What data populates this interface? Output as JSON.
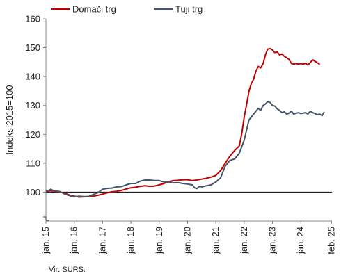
{
  "chart_data": {
    "type": "line",
    "ylabel": "Indeks 2015=100",
    "xlabel": "",
    "ylim": [
      90,
      160
    ],
    "y_ticks": [
      100,
      110,
      120,
      130,
      140,
      150,
      160
    ],
    "y_axis_break": true,
    "reference_line": 100,
    "grid": false,
    "legend_position": "top-left",
    "x_ticks": [
      {
        "label": "jan. 15",
        "x": 2015.0
      },
      {
        "label": "jan. 16",
        "x": 2016.0
      },
      {
        "label": "jan. 17",
        "x": 2017.0
      },
      {
        "label": "jan. 18",
        "x": 2018.0
      },
      {
        "label": "jan. 19",
        "x": 2019.0
      },
      {
        "label": "jan. 20",
        "x": 2020.0
      },
      {
        "label": "jan. 21",
        "x": 2021.0
      },
      {
        "label": "jan. 22",
        "x": 2022.0
      },
      {
        "label": "jan. 23",
        "x": 2023.0
      },
      {
        "label": "jan. 24",
        "x": 2024.0
      },
      {
        "label": "feb. 25",
        "x": 2025.083
      }
    ],
    "series": [
      {
        "name": "Domači trg",
        "color": "#c00000",
        "points": [
          [
            2015.0,
            100.2
          ],
          [
            2015.17,
            100.5
          ],
          [
            2015.33,
            100.3
          ],
          [
            2015.5,
            100.0
          ],
          [
            2015.67,
            99.6
          ],
          [
            2015.83,
            99.0
          ],
          [
            2016.0,
            98.6
          ],
          [
            2016.17,
            98.3
          ],
          [
            2016.33,
            98.4
          ],
          [
            2016.5,
            98.5
          ],
          [
            2016.67,
            98.6
          ],
          [
            2016.83,
            98.9
          ],
          [
            2017.0,
            99.3
          ],
          [
            2017.17,
            99.8
          ],
          [
            2017.33,
            100.1
          ],
          [
            2017.5,
            100.3
          ],
          [
            2017.67,
            100.6
          ],
          [
            2017.83,
            101.1
          ],
          [
            2018.0,
            101.5
          ],
          [
            2018.17,
            101.7
          ],
          [
            2018.33,
            102.0
          ],
          [
            2018.5,
            102.2
          ],
          [
            2018.67,
            102.0
          ],
          [
            2018.83,
            102.1
          ],
          [
            2019.0,
            102.5
          ],
          [
            2019.17,
            103.0
          ],
          [
            2019.33,
            103.6
          ],
          [
            2019.5,
            104.0
          ],
          [
            2019.67,
            104.1
          ],
          [
            2019.83,
            104.3
          ],
          [
            2020.0,
            104.3
          ],
          [
            2020.17,
            104.0
          ],
          [
            2020.33,
            104.2
          ],
          [
            2020.5,
            104.5
          ],
          [
            2020.67,
            104.8
          ],
          [
            2020.83,
            105.2
          ],
          [
            2021.0,
            105.8
          ],
          [
            2021.17,
            107.5
          ],
          [
            2021.33,
            110.0
          ],
          [
            2021.5,
            112.5
          ],
          [
            2021.67,
            114.5
          ],
          [
            2021.83,
            116.0
          ],
          [
            2021.92,
            120.5
          ],
          [
            2022.0,
            126.0
          ],
          [
            2022.08,
            130.0
          ],
          [
            2022.17,
            135.0
          ],
          [
            2022.25,
            137.5
          ],
          [
            2022.33,
            139.0
          ],
          [
            2022.42,
            142.0
          ],
          [
            2022.5,
            143.5
          ],
          [
            2022.58,
            143.0
          ],
          [
            2022.67,
            144.5
          ],
          [
            2022.75,
            147.5
          ],
          [
            2022.83,
            149.5
          ],
          [
            2022.92,
            149.7
          ],
          [
            2023.0,
            149.2
          ],
          [
            2023.08,
            148.3
          ],
          [
            2023.17,
            148.5
          ],
          [
            2023.25,
            147.5
          ],
          [
            2023.33,
            147.8
          ],
          [
            2023.42,
            147.0
          ],
          [
            2023.5,
            146.5
          ],
          [
            2023.58,
            146.0
          ],
          [
            2023.67,
            144.5
          ],
          [
            2023.75,
            144.3
          ],
          [
            2023.83,
            144.5
          ],
          [
            2023.92,
            144.3
          ],
          [
            2024.0,
            144.5
          ],
          [
            2024.08,
            144.3
          ],
          [
            2024.17,
            144.6
          ],
          [
            2024.25,
            144.0
          ],
          [
            2024.33,
            144.8
          ],
          [
            2024.42,
            145.8
          ],
          [
            2024.5,
            145.3
          ],
          [
            2024.58,
            144.8
          ],
          [
            2024.67,
            144.2
          ]
        ]
      },
      {
        "name": "Tuji trg",
        "color": "#44546a",
        "points": [
          [
            2015.0,
            100.3
          ],
          [
            2015.08,
            100.5
          ],
          [
            2015.17,
            101.0
          ],
          [
            2015.25,
            100.6
          ],
          [
            2015.33,
            100.4
          ],
          [
            2015.5,
            100.2
          ],
          [
            2015.67,
            99.3
          ],
          [
            2015.83,
            98.8
          ],
          [
            2016.0,
            98.4
          ],
          [
            2016.17,
            98.6
          ],
          [
            2016.33,
            98.5
          ],
          [
            2016.5,
            98.5
          ],
          [
            2016.67,
            99.2
          ],
          [
            2016.83,
            99.8
          ],
          [
            2017.0,
            101.0
          ],
          [
            2017.17,
            101.3
          ],
          [
            2017.33,
            101.4
          ],
          [
            2017.5,
            101.8
          ],
          [
            2017.67,
            101.9
          ],
          [
            2017.83,
            102.5
          ],
          [
            2018.0,
            103.0
          ],
          [
            2018.17,
            103.0
          ],
          [
            2018.33,
            103.8
          ],
          [
            2018.5,
            104.2
          ],
          [
            2018.67,
            104.2
          ],
          [
            2018.83,
            104.0
          ],
          [
            2019.0,
            104.0
          ],
          [
            2019.17,
            103.5
          ],
          [
            2019.33,
            103.5
          ],
          [
            2019.5,
            103.2
          ],
          [
            2019.67,
            103.3
          ],
          [
            2019.83,
            103.0
          ],
          [
            2020.0,
            102.8
          ],
          [
            2020.17,
            102.5
          ],
          [
            2020.25,
            101.5
          ],
          [
            2020.33,
            101.2
          ],
          [
            2020.42,
            102.0
          ],
          [
            2020.5,
            101.8
          ],
          [
            2020.67,
            102.2
          ],
          [
            2020.83,
            102.5
          ],
          [
            2021.0,
            103.5
          ],
          [
            2021.17,
            105.0
          ],
          [
            2021.33,
            109.0
          ],
          [
            2021.5,
            111.0
          ],
          [
            2021.67,
            111.5
          ],
          [
            2021.83,
            113.5
          ],
          [
            2022.0,
            118.0
          ],
          [
            2022.17,
            125.0
          ],
          [
            2022.33,
            127.0
          ],
          [
            2022.5,
            129.0
          ],
          [
            2022.58,
            128.3
          ],
          [
            2022.67,
            130.0
          ],
          [
            2022.75,
            130.5
          ],
          [
            2022.83,
            131.3
          ],
          [
            2022.92,
            131.0
          ],
          [
            2023.0,
            130.0
          ],
          [
            2023.08,
            129.8
          ],
          [
            2023.17,
            128.8
          ],
          [
            2023.25,
            128.3
          ],
          [
            2023.33,
            127.5
          ],
          [
            2023.42,
            127.8
          ],
          [
            2023.5,
            127.0
          ],
          [
            2023.58,
            127.3
          ],
          [
            2023.67,
            128.0
          ],
          [
            2023.75,
            127.0
          ],
          [
            2023.83,
            127.3
          ],
          [
            2023.92,
            127.5
          ],
          [
            2024.0,
            127.2
          ],
          [
            2024.17,
            127.5
          ],
          [
            2024.25,
            127.0
          ],
          [
            2024.33,
            128.0
          ],
          [
            2024.42,
            127.5
          ],
          [
            2024.5,
            127.2
          ],
          [
            2024.58,
            126.8
          ],
          [
            2024.67,
            127.0
          ],
          [
            2024.75,
            126.5
          ],
          [
            2024.83,
            127.8
          ]
        ]
      }
    ]
  },
  "source": "Vir: SURS."
}
